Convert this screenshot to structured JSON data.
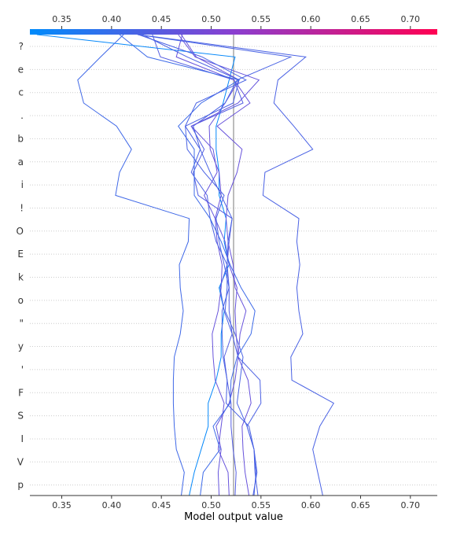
{
  "chart_data": {
    "type": "line",
    "title": "",
    "xlabel": "Model output value",
    "ylabel": "",
    "xlim": [
      0.318,
      0.727
    ],
    "xticks": [
      "0.35",
      "0.40",
      "0.45",
      "0.50",
      "0.55",
      "0.60",
      "0.65",
      "0.70"
    ],
    "xtick_values": [
      0.35,
      0.4,
      0.45,
      0.5,
      0.55,
      0.6,
      0.65,
      0.7
    ],
    "base_value": 0.5225,
    "features": [
      "?",
      "e",
      "c",
      ".",
      "b",
      "a",
      "i",
      "!",
      "O",
      "E",
      "k",
      "o",
      "\"",
      "y",
      "'",
      "F",
      "S",
      "I",
      "V",
      "p"
    ],
    "grid": "dotted horizontal rows",
    "colormap": {
      "low": "#008bfb",
      "mid": "#8a3fd0",
      "high": "#ff0052"
    },
    "series": [
      {
        "values": [
          0.478,
          0.483,
          0.49,
          0.497,
          0.497,
          0.505,
          0.51,
          0.51,
          0.513,
          0.508,
          0.518,
          0.513,
          0.515,
          0.508,
          0.508,
          0.505,
          0.505,
          0.512,
          0.518,
          0.524,
          0.325
        ]
      },
      {
        "values": [
          0.47,
          0.473,
          0.465,
          0.463,
          0.462,
          0.462,
          0.463,
          0.469,
          0.472,
          0.469,
          0.468,
          0.477,
          0.478,
          0.404,
          0.408,
          0.42,
          0.405,
          0.372,
          0.366,
          0.389,
          0.412
        ]
      },
      {
        "values": [
          0.524,
          0.525,
          0.522,
          0.52,
          0.52,
          0.516,
          0.513,
          0.521,
          0.518,
          0.518,
          0.516,
          0.518,
          0.521,
          0.487,
          0.482,
          0.493,
          0.48,
          0.532,
          0.523,
          0.449,
          0.441
        ]
      },
      {
        "values": [
          0.538,
          0.534,
          0.532,
          0.531,
          0.54,
          0.537,
          0.527,
          0.529,
          0.535,
          0.524,
          0.522,
          0.517,
          0.515,
          0.517,
          0.526,
          0.531,
          0.506,
          0.539,
          0.523,
          0.465,
          0.471
        ]
      },
      {
        "values": [
          0.518,
          0.517,
          0.507,
          0.51,
          0.513,
          0.504,
          0.502,
          0.501,
          0.507,
          0.51,
          0.511,
          0.506,
          0.504,
          0.51,
          0.508,
          0.499,
          0.498,
          0.514,
          0.528,
          0.485,
          0.47
        ]
      },
      {
        "values": [
          0.547,
          0.544,
          0.543,
          0.536,
          0.55,
          0.549,
          0.527,
          0.521,
          0.513,
          0.509,
          0.516,
          0.505,
          0.499,
          0.496,
          0.48,
          0.489,
          0.474,
          0.522,
          0.528,
          0.476,
          0.431
        ]
      },
      {
        "values": [
          0.612,
          0.607,
          0.602,
          0.609,
          0.623,
          0.581,
          0.58,
          0.592,
          0.588,
          0.586,
          0.589,
          0.586,
          0.588,
          0.552,
          0.554,
          0.602,
          0.583,
          0.563,
          0.567,
          0.595,
          0.427
        ]
      },
      {
        "values": [
          0.543,
          0.545,
          0.543,
          0.536,
          0.526,
          0.529,
          0.532,
          0.524,
          0.514,
          0.516,
          0.516,
          0.517,
          0.521,
          0.51,
          0.499,
          0.489,
          0.482,
          0.514,
          0.526,
          0.58,
          0.426
        ]
      },
      {
        "values": [
          0.508,
          0.507,
          0.51,
          0.505,
          0.518,
          0.524,
          0.527,
          0.525,
          0.524,
          0.526,
          0.518,
          0.514,
          0.504,
          0.493,
          0.506,
          0.502,
          0.48,
          0.527,
          0.548,
          0.484,
          0.467
        ]
      },
      {
        "values": [
          0.489,
          0.492,
          0.509,
          0.502,
          0.519,
          0.52,
          0.526,
          0.54,
          0.544,
          0.53,
          0.519,
          0.51,
          0.499,
          0.483,
          0.483,
          0.483,
          0.467,
          0.49,
          0.528,
          0.436,
          0.408
        ]
      },
      {
        "values": [
          0.542,
          0.546,
          0.543,
          0.538,
          0.515,
          0.516,
          0.512,
          0.511,
          0.511,
          0.518,
          0.513,
          0.508,
          0.505,
          0.513,
          0.493,
          0.476,
          0.474,
          0.485,
          0.535,
          0.491,
          0.427
        ]
      }
    ]
  }
}
